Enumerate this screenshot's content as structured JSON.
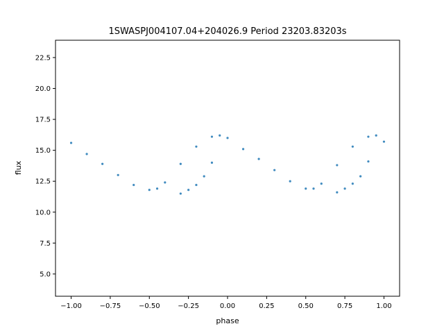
{
  "chart_data": {
    "type": "scatter",
    "title": "1SWASPJ004107.04+204026.9 Period 23203.83203s",
    "xlabel": "phase",
    "ylabel": "flux",
    "xlim": [
      -1.1,
      1.1
    ],
    "ylim": [
      3.2,
      23.9
    ],
    "xticks": [
      -1.0,
      -0.75,
      -0.5,
      -0.25,
      0.0,
      0.25,
      0.5,
      0.75,
      1.0
    ],
    "xtick_labels": [
      "−1.00",
      "−0.75",
      "−0.50",
      "−0.25",
      "0.00",
      "0.25",
      "0.50",
      "0.75",
      "1.00"
    ],
    "yticks": [
      5.0,
      7.5,
      10.0,
      12.5,
      15.0,
      17.5,
      20.0,
      22.5
    ],
    "ytick_labels": [
      "5.0",
      "7.5",
      "10.0",
      "12.5",
      "15.0",
      "17.5",
      "20.0",
      "22.5"
    ],
    "grid": false,
    "marker_color": "#1f77b4",
    "series": [
      {
        "phase": [
          -1.0,
          -0.9,
          -0.8,
          -0.7,
          -0.6,
          -0.5,
          -0.45,
          -0.4,
          -0.3,
          -0.2,
          -0.1,
          -0.05,
          0.0,
          0.1,
          0.2,
          0.3,
          0.4,
          0.5,
          0.55,
          0.6,
          0.7,
          0.8,
          0.9,
          0.95,
          1.0
        ],
        "flux": [
          15.6,
          14.7,
          13.9,
          13.0,
          12.2,
          11.8,
          11.9,
          12.4,
          13.9,
          15.3,
          16.1,
          16.2,
          16.0,
          15.1,
          14.3,
          13.4,
          12.5,
          11.9,
          11.9,
          12.3,
          13.8,
          15.3,
          16.1,
          16.2,
          15.7
        ]
      },
      {
        "phase": [
          -0.3,
          -0.25,
          -0.2,
          -0.15,
          -0.1,
          0.7,
          0.75,
          0.8,
          0.85,
          0.9
        ],
        "flux": [
          11.5,
          11.8,
          12.2,
          12.9,
          14.0,
          11.6,
          11.9,
          12.3,
          12.9,
          14.1
        ]
      }
    ]
  }
}
